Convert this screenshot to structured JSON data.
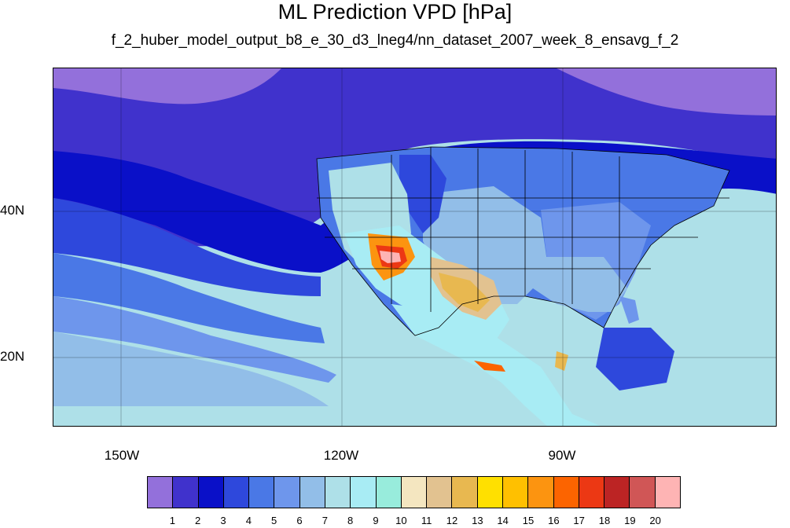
{
  "title": "ML Prediction VPD [hPa]",
  "subtitle": "f_2_huber_model_output_b8_e_30_d3_lneg4/nn_dataset_2007_week_8_ensavg_f_2",
  "axes": {
    "lon_labels": [
      "150W",
      "120W",
      "90W"
    ],
    "lat_labels": [
      "40N",
      "20N"
    ]
  },
  "colorbar": {
    "labels": [
      "1",
      "2",
      "3",
      "4",
      "5",
      "6",
      "7",
      "8",
      "9",
      "10",
      "11",
      "12",
      "13",
      "14",
      "15",
      "16",
      "17",
      "18",
      "19",
      "20"
    ],
    "colors": [
      "#9370db",
      "#4032cc",
      "#0a10c8",
      "#2e48dc",
      "#4a78e6",
      "#6e96ec",
      "#92bee8",
      "#aee0e8",
      "#a8ecf4",
      "#98ecdc",
      "#f4e6c0",
      "#e2c290",
      "#e8b850",
      "#ffe000",
      "#ffc000",
      "#fc9410",
      "#fc6400",
      "#ec3814",
      "#bc2424",
      "#d05656",
      "#feb4b4"
    ]
  },
  "map": {
    "extent": {
      "lon": [
        -160,
        -62
      ],
      "lat": [
        10,
        59
      ]
    },
    "ocean_base_color": "#aee0e8",
    "northern_band_color": "#4032cc",
    "feature_colors": {
      "nw_cap": "#9370db",
      "ne_cap": "#9370db",
      "deep_blue": "#0a10c8",
      "mid_blue": "#2e48dc",
      "light_blue": "#6e96ec",
      "hot_core": "#feb4b4"
    }
  }
}
